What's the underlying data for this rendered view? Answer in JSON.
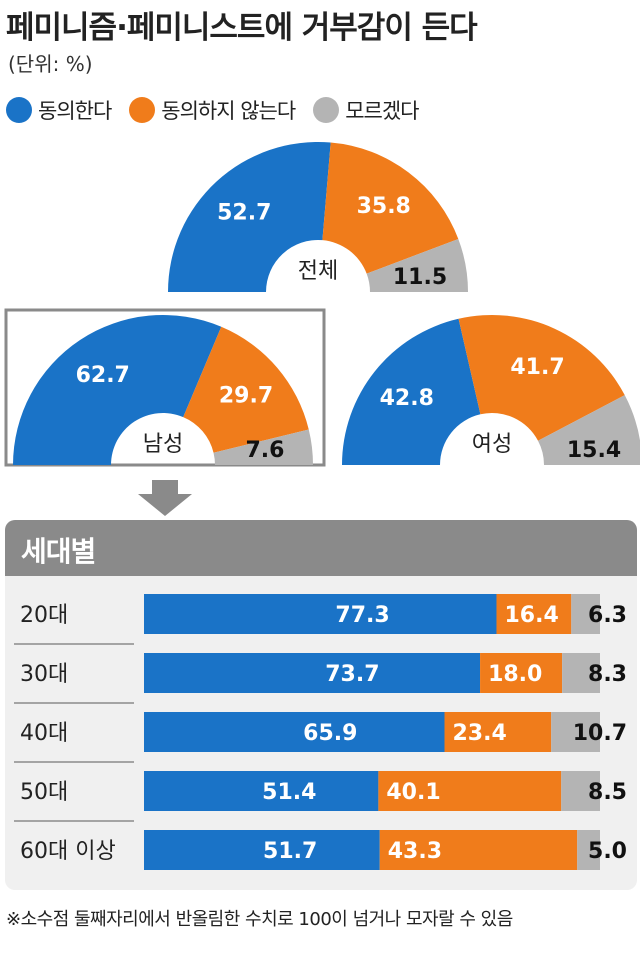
{
  "title": "페미니즘·페미니스트에 거부감이 든다",
  "unit": "(단위: %)",
  "colors": {
    "agree": "#1a73c7",
    "disagree": "#f07c1b",
    "dunno": "#b4b4b4",
    "header": "#8a8a8a",
    "panel": "#f0f0f0"
  },
  "legend": [
    {
      "label": "동의한다",
      "color": "#1a73c7"
    },
    {
      "label": "동의하지 않는다",
      "color": "#f07c1b"
    },
    {
      "label": "모르겠다",
      "color": "#b4b4b4"
    }
  ],
  "chart_data": [
    {
      "type": "pie",
      "subtype": "half-donut",
      "title": "페미니즘·페미니스트에 거부감이 든다",
      "categories": [
        "동의한다",
        "동의하지 않는다",
        "모르겠다"
      ],
      "groups": [
        {
          "key": "total",
          "label": "전체",
          "values": [
            52.7,
            35.8,
            11.5
          ],
          "value_labels": [
            "52.7",
            "35.8",
            "11.5"
          ]
        },
        {
          "key": "male",
          "label": "남성",
          "values": [
            62.7,
            29.7,
            7.6
          ],
          "value_labels": [
            "62.7",
            "29.7",
            "7.6"
          ]
        },
        {
          "key": "female",
          "label": "여성",
          "values": [
            42.8,
            41.7,
            15.4
          ],
          "value_labels": [
            "42.8",
            "41.7",
            "15.4"
          ]
        }
      ]
    },
    {
      "type": "bar",
      "orientation": "horizontal",
      "stacked": true,
      "title": "세대별",
      "categories": [
        "20대",
        "30대",
        "40대",
        "50대",
        "60대 이상"
      ],
      "series": [
        {
          "name": "동의한다",
          "values": [
            77.3,
            73.7,
            65.9,
            51.4,
            51.7
          ],
          "labels": [
            "77.3",
            "73.7",
            "65.9",
            "51.4",
            "51.7"
          ]
        },
        {
          "name": "동의하지 않는다",
          "values": [
            16.4,
            18.0,
            23.4,
            40.1,
            43.3
          ],
          "labels": [
            "16.4",
            "18.0",
            "23.4",
            "40.1",
            "43.3"
          ]
        },
        {
          "name": "모르겠다",
          "values": [
            6.3,
            8.3,
            10.7,
            8.5,
            5.0
          ],
          "labels": [
            "6.3",
            "8.3",
            "10.7",
            "8.5",
            "5.0"
          ]
        }
      ]
    }
  ],
  "generation_title": "세대별",
  "footnote": "※소수점 둘째자리에서 반올림한 수치로 100이 넘거나 모자랄 수 있음"
}
